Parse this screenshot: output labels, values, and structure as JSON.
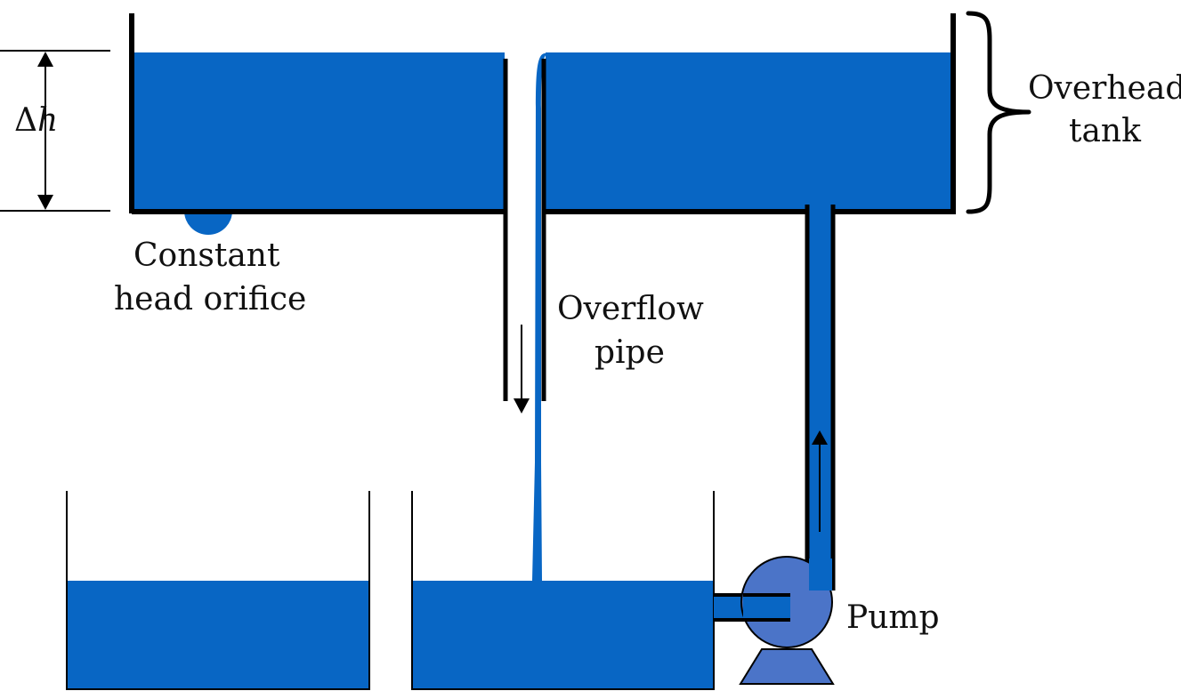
{
  "labels": {
    "delta_h_symbol": "Δ",
    "delta_h_var": "h",
    "overhead_tank_line1": "Overhead",
    "overhead_tank_line2": "tank",
    "orifice_line1": "Constant",
    "orifice_line2": "head orifice",
    "overflow_line1": "Overflow",
    "overflow_line2": "pipe",
    "pump": "Pump"
  },
  "colors": {
    "water": "#0866c4",
    "pump_fill": "#4b74c8",
    "line": "#000000"
  }
}
